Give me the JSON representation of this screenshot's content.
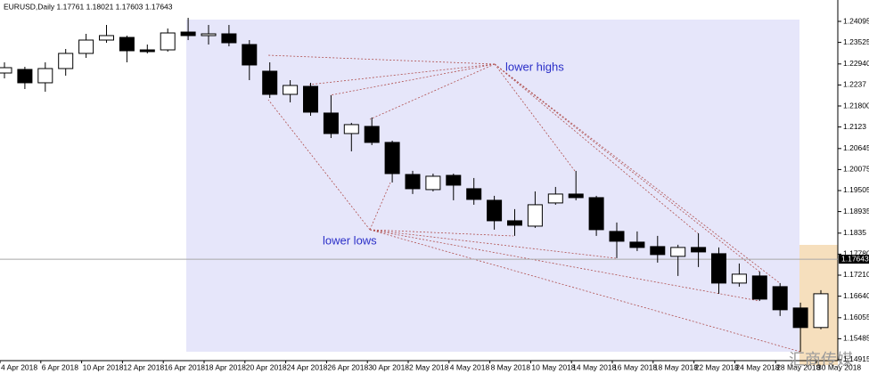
{
  "chart_data": {
    "type": "candlestick",
    "title": "EURUSD,Daily  1.17761 1.18021 1.17603 1.17643",
    "categories": [
      "4 Apr 2018",
      null,
      "6 Apr 2018",
      null,
      "10 Apr 2018",
      null,
      "12 Apr 2018",
      null,
      "16 Apr 2018",
      null,
      "18 Apr 2018",
      null,
      "20 Apr 2018",
      null,
      "24 Apr 2018",
      null,
      "26 Apr 2018",
      null,
      "30 Apr 2018",
      null,
      "2 May 2018",
      null,
      "4 May 2018",
      null,
      "8 May 2018",
      null,
      "10 May 2018",
      null,
      "14 May 2018",
      null,
      "16 May 2018",
      null,
      "18 May 2018",
      null,
      "22 May 2018",
      null,
      "24 May 2018",
      null,
      "28 May 2018",
      null,
      "30 May 2018"
    ],
    "ohlc": [
      [
        1.22694,
        1.22984,
        1.22549,
        1.22839
      ],
      [
        1.22791,
        1.22863,
        1.2226,
        1.22429
      ],
      [
        1.22429,
        1.22984,
        1.22187,
        1.22815
      ],
      [
        1.22815,
        1.23346,
        1.22622,
        1.23226
      ],
      [
        1.23226,
        1.23757,
        1.23105,
        1.23588
      ],
      [
        1.23588,
        1.23998,
        1.23515,
        1.23709
      ],
      [
        1.2366,
        1.23709,
        1.22984,
        1.23298
      ],
      [
        1.23322,
        1.23467,
        1.23226,
        1.23274
      ],
      [
        1.23322,
        1.23902,
        1.23274,
        1.23781
      ],
      [
        1.23805,
        1.24192,
        1.23588,
        1.23709
      ],
      [
        1.23709,
        1.23998,
        1.23467,
        1.23757
      ],
      [
        1.23757,
        1.23998,
        1.23419,
        1.23515
      ],
      [
        1.23467,
        1.23588,
        1.22501,
        1.22912
      ],
      [
        1.22743,
        1.22984,
        1.22018,
        1.22115
      ],
      [
        1.22115,
        1.22501,
        1.21898,
        1.22356
      ],
      [
        1.22332,
        1.22429,
        1.21535,
        1.21632
      ],
      [
        1.21608,
        1.22091,
        1.20931,
        1.21052
      ],
      [
        1.21052,
        1.21342,
        1.20569,
        1.21294
      ],
      [
        1.21245,
        1.21487,
        1.20738,
        1.20811
      ],
      [
        1.20811,
        1.20859,
        1.19724,
        1.19965
      ],
      [
        1.19941,
        1.20038,
        1.1941,
        1.19555
      ],
      [
        1.19531,
        1.19965,
        1.19482,
        1.19893
      ],
      [
        1.19917,
        1.19965,
        1.19241,
        1.19651
      ],
      [
        1.19555,
        1.19845,
        1.1912,
        1.19265
      ],
      [
        1.19241,
        1.19362,
        1.18444,
        1.18685
      ],
      [
        1.18685,
        1.19,
        1.18275,
        1.18565
      ],
      [
        1.1854,
        1.19482,
        1.18492,
        1.1912
      ],
      [
        1.19169,
        1.19603,
        1.1912,
        1.1941
      ],
      [
        1.1941,
        1.20038,
        1.19241,
        1.19313
      ],
      [
        1.19313,
        1.19362,
        1.18275,
        1.18444
      ],
      [
        1.18396,
        1.18637,
        1.17671,
        1.1813
      ],
      [
        1.18106,
        1.18396,
        1.17864,
        1.17961
      ],
      [
        1.17985,
        1.18275,
        1.1755,
        1.17768
      ],
      [
        1.1772,
        1.18034,
        1.17188,
        1.17961
      ],
      [
        1.17961,
        1.18347,
        1.1743,
        1.1784
      ],
      [
        1.17792,
        1.17961,
        1.16705,
        1.16995
      ],
      [
        1.16995,
        1.17526,
        1.16898,
        1.17236
      ],
      [
        1.17188,
        1.17309,
        1.16512,
        1.1656
      ],
      [
        1.16898,
        1.16995,
        1.16102,
        1.16271
      ],
      [
        1.16319,
        1.16464,
        1.15135,
        1.15789
      ],
      [
        1.15789,
        1.16802,
        1.15741,
        1.16705
      ]
    ],
    "up_color": "#ffffff",
    "down_color": "#000000",
    "ylim": [
      1.14673,
      1.24675
    ],
    "yticks": [
      1.24095,
      1.23525,
      {
        "value": 1.2294,
        "label": "1.22940"
      },
      1.2237,
      {
        "value": 1.218,
        "label": "1.21800"
      },
      1.2123,
      1.20645,
      1.20075,
      1.19505,
      1.18935,
      1.1835,
      {
        "value": 1.1778,
        "label": "1.17780"
      },
      {
        "value": 1.1721,
        "label": "1.17210"
      },
      {
        "value": 1.1664,
        "label": "1.16640"
      },
      1.16055,
      1.15485,
      1.14915
    ],
    "current_price": 1.17643,
    "annotations": [
      "lower highs",
      "lower lows"
    ],
    "watermark": "汇商传媒"
  }
}
